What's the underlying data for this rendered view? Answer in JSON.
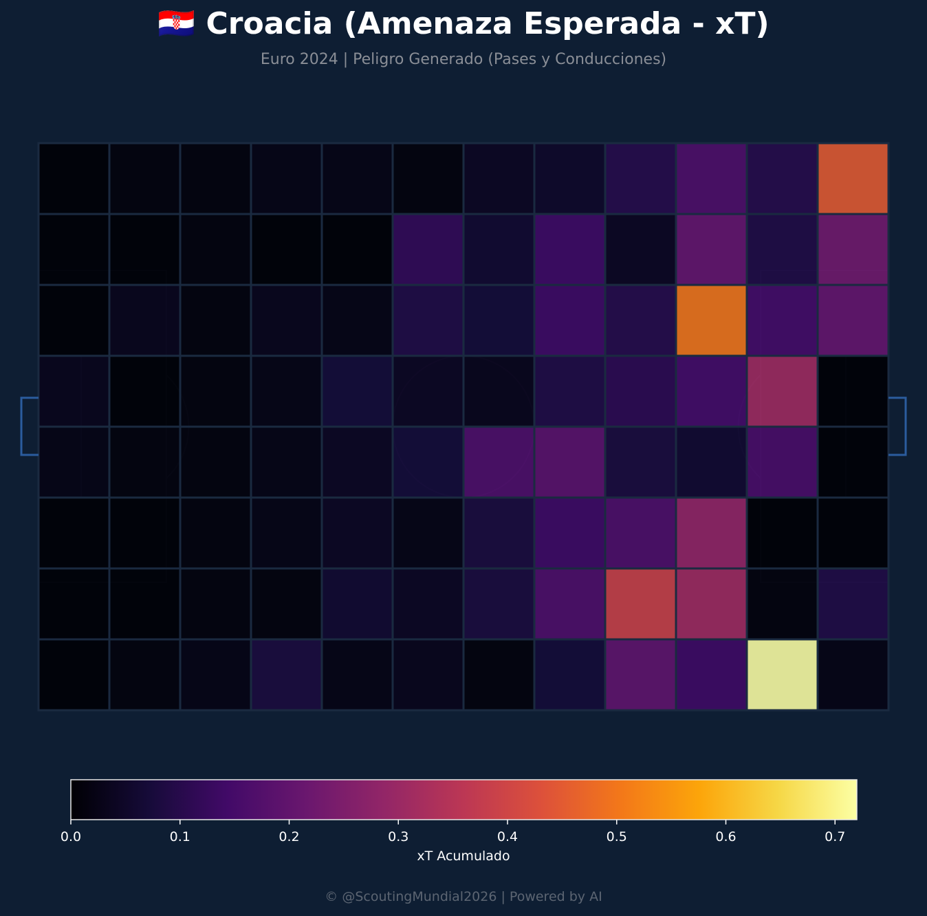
{
  "title": "🇭🇷 Croacia (Amenaza Esperada - xT)",
  "subtitle": "Euro 2024 | Peligro Generado (Pases y Conducciones)",
  "footer": "© @ScoutingMundial2026 | Powered by AI",
  "colors": {
    "background": "#0e1e33",
    "pitch_line": "#1e2e4a",
    "grid_line": "#1a2a40",
    "goal": "#2b5c9e"
  },
  "chart_data": {
    "type": "heatmap",
    "colormap": "inferno",
    "zlim": [
      0,
      0.72
    ],
    "colorbar": {
      "label": "xT Acumulado",
      "ticks": [
        "0.0",
        "0.1",
        "0.2",
        "0.3",
        "0.4",
        "0.5",
        "0.6",
        "0.7"
      ],
      "tick_values": [
        0,
        0.1,
        0.2,
        0.3,
        0.4,
        0.5,
        0.6,
        0.7
      ],
      "orientation": "horizontal"
    },
    "grid": {
      "columns": 12,
      "rows": 8
    },
    "values": [
      [
        0.0,
        0.01,
        0.01,
        0.02,
        0.02,
        0.01,
        0.04,
        0.05,
        0.1,
        0.17,
        0.1,
        0.45
      ],
      [
        0.0,
        0.0,
        0.01,
        0.0,
        0.0,
        0.12,
        0.06,
        0.14,
        0.04,
        0.21,
        0.09,
        0.23
      ],
      [
        0.0,
        0.03,
        0.01,
        0.03,
        0.02,
        0.09,
        0.07,
        0.14,
        0.1,
        0.5,
        0.15,
        0.21
      ],
      [
        0.03,
        0.0,
        0.01,
        0.02,
        0.07,
        0.04,
        0.03,
        0.09,
        0.11,
        0.15,
        0.31,
        0.0
      ],
      [
        0.02,
        0.01,
        0.01,
        0.02,
        0.04,
        0.07,
        0.17,
        0.19,
        0.08,
        0.06,
        0.16,
        0.0
      ],
      [
        0.0,
        0.0,
        0.01,
        0.02,
        0.04,
        0.02,
        0.08,
        0.14,
        0.17,
        0.29,
        0.0,
        0.0
      ],
      [
        0.0,
        0.0,
        0.01,
        0.01,
        0.06,
        0.04,
        0.08,
        0.17,
        0.39,
        0.31,
        0.01,
        0.09
      ],
      [
        0.0,
        0.01,
        0.02,
        0.08,
        0.02,
        0.03,
        0.01,
        0.07,
        0.2,
        0.14,
        0.72,
        0.02
      ]
    ]
  }
}
